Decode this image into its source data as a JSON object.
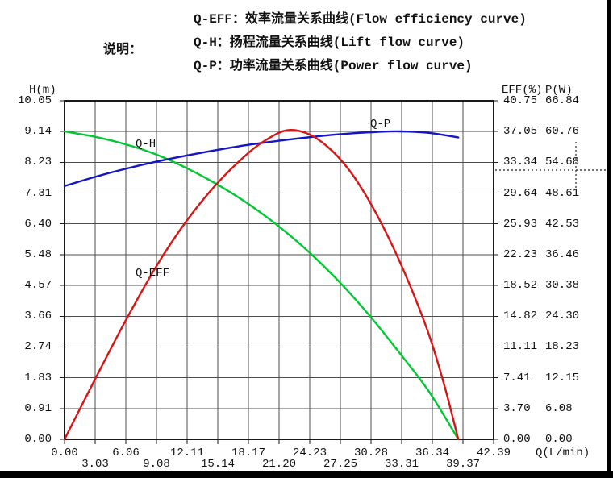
{
  "header": {
    "label": "说明：",
    "lines": [
      "Q-EFF：效率流量关系曲线(Flow efficiency curve)",
      "Q-H：扬程流量关系曲线(Lift flow curve)",
      "Q-P：功率流量关系曲线(Power flow curve)"
    ]
  },
  "chart_data": {
    "type": "line",
    "title": "",
    "grid": true,
    "legend_position": "inline-labels",
    "grid_color": "#4d4d4d",
    "border_color": "#1a1a1a",
    "x_axis": {
      "label": "Q(L/min)",
      "min": 0,
      "max": 42.39,
      "ticks": [
        "0.00",
        "3.03",
        "6.06",
        "9.08",
        "12.11",
        "15.14",
        "18.17",
        "21.20",
        "24.23",
        "27.25",
        "30.28",
        "33.31",
        "36.34",
        "39.37",
        "42.39"
      ]
    },
    "y_axes": [
      {
        "id": "h",
        "label": "H(m)",
        "min": 0,
        "max": 10.05,
        "ticks": [
          "10.05",
          "9.14",
          "8.23",
          "7.31",
          "6.40",
          "5.48",
          "4.57",
          "3.66",
          "2.74",
          "1.83",
          "0.91",
          "0.00"
        ]
      },
      {
        "id": "eff",
        "label": "EFF(%)",
        "min": 0,
        "max": 40.75,
        "ticks": [
          "40.75",
          "37.05",
          "33.34",
          "29.64",
          "25.93",
          "22.23",
          "18.52",
          "14.82",
          "11.11",
          "7.41",
          "3.70",
          "0.00"
        ]
      },
      {
        "id": "p",
        "label": "P(W)",
        "min": 0,
        "max": 66.84,
        "ticks": [
          "66.84",
          "60.76",
          "54.68",
          "48.61",
          "42.53",
          "36.46",
          "30.38",
          "24.30",
          "18.23",
          "12.15",
          "6.08",
          "0.00"
        ]
      }
    ],
    "series": [
      {
        "name": "Q-H",
        "axis": "h",
        "color": "#00c832",
        "points": [
          [
            0,
            9.14
          ],
          [
            3,
            8.98
          ],
          [
            6,
            8.76
          ],
          [
            9,
            8.46
          ],
          [
            12,
            8.06
          ],
          [
            15,
            7.58
          ],
          [
            18,
            7.02
          ],
          [
            21,
            6.36
          ],
          [
            24,
            5.6
          ],
          [
            27,
            4.72
          ],
          [
            30,
            3.72
          ],
          [
            33,
            2.6
          ],
          [
            36,
            1.42
          ],
          [
            38.9,
            0
          ]
        ]
      },
      {
        "name": "Q-EFF",
        "axis": "eff",
        "color": "#d81414",
        "points": [
          [
            0,
            0
          ],
          [
            3,
            7.2
          ],
          [
            6,
            14.2
          ],
          [
            9,
            20.7
          ],
          [
            12,
            26.2
          ],
          [
            15,
            30.7
          ],
          [
            18,
            34.3
          ],
          [
            20,
            36.1
          ],
          [
            22,
            37.2
          ],
          [
            24,
            36.8
          ],
          [
            26,
            35.2
          ],
          [
            28,
            32.6
          ],
          [
            30,
            28.9
          ],
          [
            32,
            24.3
          ],
          [
            34,
            18.9
          ],
          [
            36,
            12.6
          ],
          [
            37.5,
            6.6
          ],
          [
            38.9,
            0
          ]
        ]
      },
      {
        "name": "Q-P",
        "axis": "p",
        "color": "#1414c8",
        "points": [
          [
            0,
            50.0
          ],
          [
            3,
            51.8
          ],
          [
            6,
            53.4
          ],
          [
            9,
            54.8
          ],
          [
            12,
            56.0
          ],
          [
            15,
            57.1
          ],
          [
            18,
            58.1
          ],
          [
            21,
            58.9
          ],
          [
            24,
            59.6
          ],
          [
            27,
            60.2
          ],
          [
            30,
            60.6
          ],
          [
            33,
            60.8
          ],
          [
            36,
            60.5
          ],
          [
            38.9,
            59.6
          ]
        ]
      }
    ]
  }
}
